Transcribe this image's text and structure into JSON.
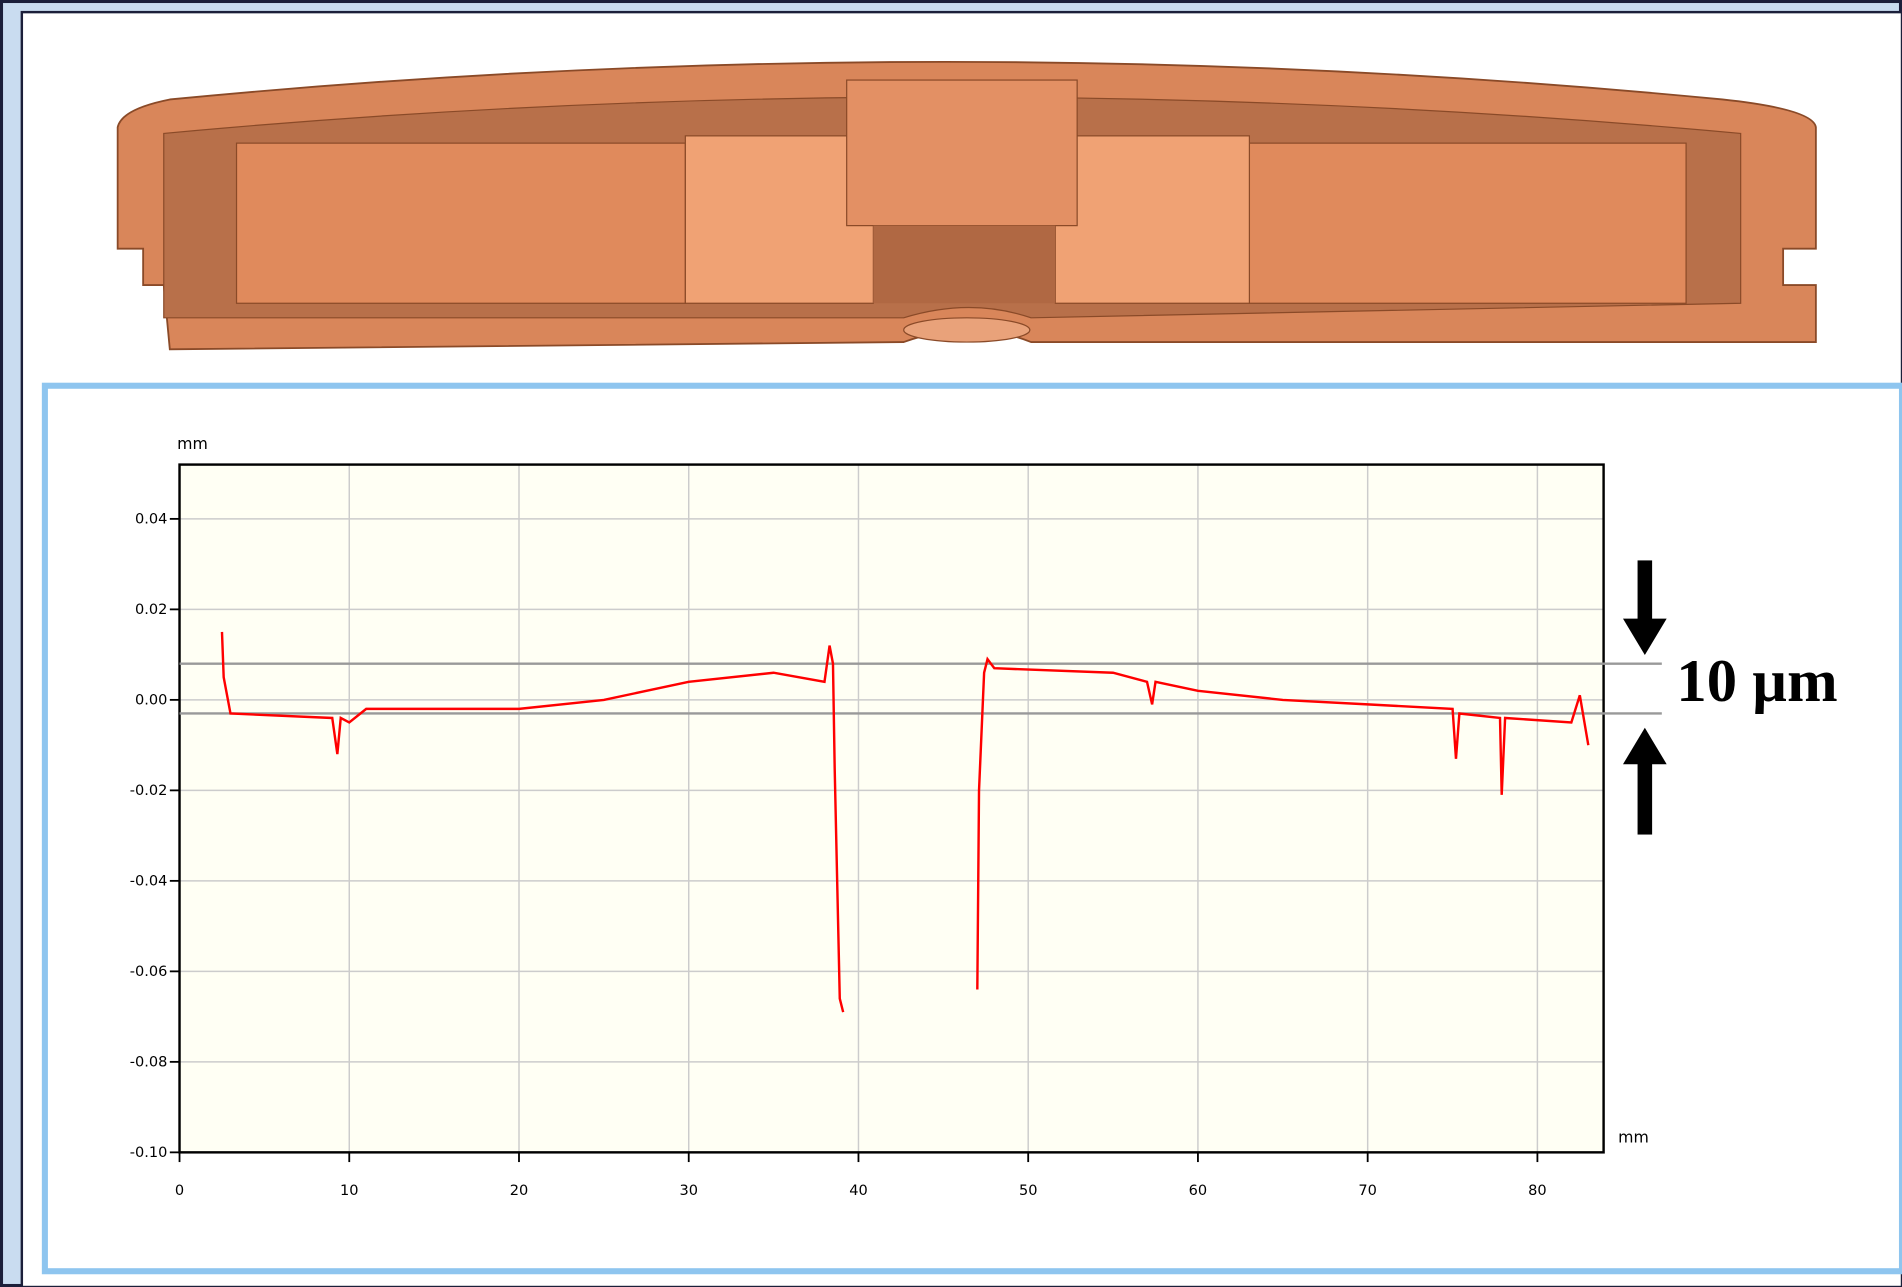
{
  "chart_data": {
    "type": "line",
    "x_unit": "mm",
    "y_unit": "mm",
    "annotation": "10 µm",
    "color": "#ff0000",
    "reference_lines": [
      0.008,
      -0.003
    ],
    "reference_color": "#999999",
    "grid": true,
    "xlim": [
      0,
      83.9
    ],
    "ylim": [
      -0.1,
      0.052
    ],
    "xticks": [
      0,
      10,
      20,
      30,
      40,
      50,
      60,
      70,
      80
    ],
    "yticks": [
      {
        "value": 0.04,
        "label": "0.04"
      },
      {
        "value": 0.02,
        "label": "0.02"
      },
      {
        "value": 0,
        "label": "0.00"
      },
      {
        "value": -0.02,
        "label": "-0.02"
      },
      {
        "value": -0.04,
        "label": "-0.04"
      },
      {
        "value": -0.06,
        "label": "-0.06"
      },
      {
        "value": -0.08,
        "label": "-0.08"
      },
      {
        "value": -0.1,
        "label": "-0.10"
      }
    ],
    "x": [
      2.5,
      2.6,
      3,
      9,
      9.3,
      9.5,
      10,
      11,
      20,
      25,
      30,
      35,
      38,
      38.3,
      38.5,
      38.6,
      38.9,
      39.1,
      null,
      47.0,
      47.1,
      47.4,
      47.6,
      48,
      55,
      57,
      57.3,
      57.5,
      60,
      65,
      70,
      75,
      75.2,
      75.4,
      77.8,
      77.9,
      78.1,
      82,
      82.5,
      83
    ],
    "values": [
      0.015,
      0.005,
      -0.003,
      -0.004,
      -0.012,
      -0.004,
      -0.005,
      -0.002,
      -0.002,
      0.0,
      0.004,
      0.006,
      0.004,
      0.012,
      0.008,
      -0.015,
      -0.066,
      -0.069,
      null,
      -0.064,
      -0.02,
      0.006,
      0.009,
      0.007,
      0.006,
      0.004,
      -0.001,
      0.004,
      0.002,
      0.0,
      -0.001,
      -0.002,
      -0.013,
      -0.003,
      -0.004,
      -0.021,
      -0.004,
      -0.005,
      0.001,
      -0.01
    ]
  }
}
